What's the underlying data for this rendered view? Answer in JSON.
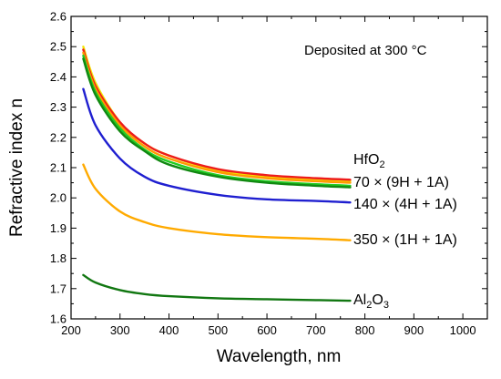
{
  "chart_data": {
    "type": "line",
    "xlabel": "Wavelength, nm",
    "ylabel": "Refractive index n",
    "xlim": [
      200,
      1050
    ],
    "ylim": [
      1.6,
      2.6
    ],
    "xticks": [
      "200",
      "300",
      "400",
      "500",
      "600",
      "700",
      "800",
      "900",
      "1000"
    ],
    "yticks": [
      "1.6",
      "1.7",
      "1.8",
      "1.9",
      "2.0",
      "2.1",
      "2.2",
      "2.3",
      "2.4",
      "2.5",
      "2.6"
    ],
    "grid": false,
    "annotation": "Deposited at 300 °C",
    "series": [
      {
        "color": "#f2e600",
        "x": [
          225,
          250,
          300,
          350,
          400,
          500,
          600,
          700,
          770
        ],
        "y": [
          2.5,
          2.38,
          2.25,
          2.18,
          2.14,
          2.09,
          2.07,
          2.06,
          2.055
        ]
      },
      {
        "color": "#ee1c1c",
        "x": [
          225,
          250,
          300,
          350,
          400,
          500,
          600,
          700,
          770
        ],
        "y": [
          2.49,
          2.37,
          2.25,
          2.18,
          2.14,
          2.095,
          2.075,
          2.065,
          2.06
        ]
      },
      {
        "color": "#ff9a00",
        "x": [
          225,
          250,
          300,
          350,
          400,
          500,
          600,
          700,
          770
        ],
        "y": [
          2.48,
          2.36,
          2.24,
          2.17,
          2.13,
          2.085,
          2.065,
          2.055,
          2.05
        ]
      },
      {
        "name_lines": [
          "HfO",
          "2"
        ],
        "color": "#22cc22",
        "x": [
          225,
          250,
          300,
          350,
          400,
          500,
          600,
          700,
          770
        ],
        "y": [
          2.47,
          2.35,
          2.23,
          2.16,
          2.12,
          2.075,
          2.055,
          2.045,
          2.04
        ]
      },
      {
        "name": "70 × (9H + 1A)",
        "color": "#118811",
        "x": [
          225,
          250,
          300,
          350,
          400,
          500,
          600,
          700,
          770
        ],
        "y": [
          2.46,
          2.34,
          2.22,
          2.155,
          2.11,
          2.07,
          2.05,
          2.04,
          2.035
        ]
      },
      {
        "name": "140 × (4H + 1A)",
        "color": "#1f1fd0",
        "x": [
          225,
          250,
          300,
          350,
          400,
          500,
          600,
          700,
          770
        ],
        "y": [
          2.36,
          2.24,
          2.13,
          2.07,
          2.04,
          2.01,
          1.995,
          1.99,
          1.985
        ]
      },
      {
        "name": "350 × (1H + 1A)",
        "color": "#ffaa00",
        "x": [
          225,
          250,
          300,
          350,
          400,
          500,
          600,
          700,
          770
        ],
        "y": [
          2.11,
          2.03,
          1.955,
          1.92,
          1.9,
          1.88,
          1.87,
          1.865,
          1.86
        ]
      },
      {
        "name_lines": [
          "Al",
          "2",
          "O",
          "3"
        ],
        "color": "#117711",
        "x": [
          225,
          250,
          300,
          350,
          400,
          500,
          600,
          700,
          770
        ],
        "y": [
          1.745,
          1.72,
          1.695,
          1.682,
          1.675,
          1.668,
          1.665,
          1.662,
          1.66
        ]
      }
    ]
  }
}
